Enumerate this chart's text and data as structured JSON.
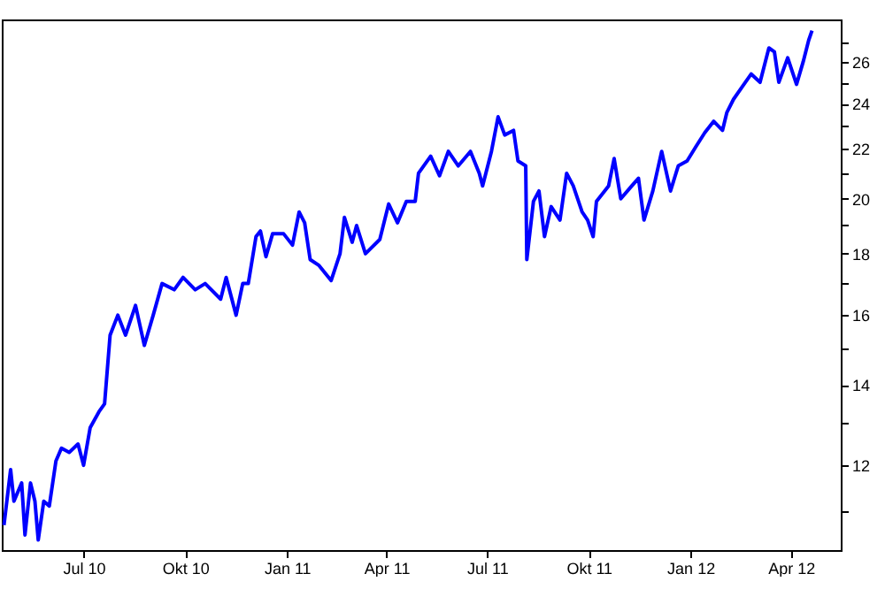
{
  "chart_data": {
    "type": "line",
    "log": "y",
    "grid": false,
    "xlim": [
      "2010-04-18",
      "2012-05-16"
    ],
    "xticks": [
      {
        "value": "2010-07-01",
        "label": "Jul 10"
      },
      {
        "value": "2010-10-01",
        "label": "Okt 10"
      },
      {
        "value": "2011-01-01",
        "label": "Jan 11"
      },
      {
        "value": "2011-04-01",
        "label": "Apr 11"
      },
      {
        "value": "2011-07-01",
        "label": "Jul 11"
      },
      {
        "value": "2011-10-01",
        "label": "Okt 11"
      },
      {
        "value": "2012-01-01",
        "label": "Jan 12"
      },
      {
        "value": "2012-04-01",
        "label": "Apr 12"
      }
    ],
    "ylim": [
      10.2,
      28.2
    ],
    "yticks": [
      {
        "value": 11,
        "label": null
      },
      12,
      {
        "value": 13,
        "label": null
      },
      14,
      {
        "value": 15,
        "label": null
      },
      16,
      {
        "value": 17,
        "label": null
      },
      18,
      {
        "value": 19,
        "label": null
      },
      20,
      {
        "value": 21,
        "label": null
      },
      22,
      {
        "value": 23,
        "label": null
      },
      24,
      {
        "value": 25,
        "label": null
      },
      26,
      {
        "value": 27,
        "label": null
      }
    ],
    "x": [
      "2010-04-20",
      "2010-04-26",
      "2010-04-29",
      "2010-05-06",
      "2010-05-09",
      "2010-05-14",
      "2010-05-18",
      "2010-05-21",
      "2010-05-26",
      "2010-05-31",
      "2010-06-06",
      "2010-06-11",
      "2010-06-18",
      "2010-06-26",
      "2010-07-01",
      "2010-07-07",
      "2010-07-15",
      "2010-07-20",
      "2010-07-25",
      "2010-08-01",
      "2010-08-08",
      "2010-08-17",
      "2010-08-25",
      "2010-09-02",
      "2010-09-10",
      "2010-09-21",
      "2010-09-29",
      "2010-10-10",
      "2010-10-19",
      "2010-11-02",
      "2010-11-07",
      "2010-11-16",
      "2010-11-22",
      "2010-11-27",
      "2010-12-04",
      "2010-12-08",
      "2010-12-13",
      "2010-12-19",
      "2010-12-29",
      "2011-01-06",
      "2011-01-12",
      "2011-01-17",
      "2011-01-22",
      "2011-01-30",
      "2011-02-10",
      "2011-02-18",
      "2011-02-22",
      "2011-03-01",
      "2011-03-05",
      "2011-03-13",
      "2011-03-26",
      "2011-04-03",
      "2011-04-11",
      "2011-04-19",
      "2011-04-27",
      "2011-04-30",
      "2011-05-11",
      "2011-05-19",
      "2011-05-27",
      "2011-06-05",
      "2011-06-16",
      "2011-06-24",
      "2011-06-27",
      "2011-07-05",
      "2011-07-11",
      "2011-07-17",
      "2011-07-25",
      "2011-07-29",
      "2011-08-05",
      "2011-08-06",
      "2011-08-12",
      "2011-08-17",
      "2011-08-22",
      "2011-08-28",
      "2011-09-05",
      "2011-09-11",
      "2011-09-17",
      "2011-09-25",
      "2011-09-30",
      "2011-10-05",
      "2011-10-08",
      "2011-10-19",
      "2011-10-24",
      "2011-10-30",
      "2011-11-09",
      "2011-11-15",
      "2011-11-20",
      "2011-11-28",
      "2011-12-06",
      "2011-12-14",
      "2011-12-21",
      "2011-12-29",
      "2012-01-06",
      "2012-01-14",
      "2012-01-22",
      "2012-01-30",
      "2012-02-03",
      "2012-02-09",
      "2012-02-17",
      "2012-02-25",
      "2012-03-04",
      "2012-03-12",
      "2012-03-17",
      "2012-03-21",
      "2012-03-29",
      "2012-04-06",
      "2012-04-12",
      "2012-04-17",
      "2012-04-20"
    ],
    "series": [
      {
        "color": "#0000ff",
        "values": [
          10.7,
          11.9,
          11.2,
          11.6,
          10.5,
          11.6,
          11.2,
          10.4,
          11.2,
          11.1,
          12.1,
          12.4,
          12.3,
          12.5,
          12.0,
          12.9,
          13.3,
          13.5,
          15.4,
          16.0,
          15.4,
          16.3,
          15.1,
          16.0,
          17.0,
          16.8,
          17.2,
          16.8,
          17.0,
          16.5,
          17.2,
          16.0,
          17.0,
          17.0,
          18.6,
          18.8,
          17.9,
          18.7,
          18.7,
          18.3,
          19.5,
          19.1,
          17.8,
          17.6,
          17.1,
          18.0,
          19.3,
          18.4,
          19.0,
          18.0,
          18.5,
          19.8,
          19.1,
          19.9,
          19.9,
          21.0,
          21.7,
          20.9,
          21.9,
          21.3,
          21.9,
          21.0,
          20.5,
          21.9,
          23.4,
          22.6,
          22.8,
          21.5,
          21.3,
          17.8,
          19.9,
          20.3,
          18.6,
          19.7,
          19.2,
          21.0,
          20.5,
          19.5,
          19.2,
          18.6,
          19.9,
          20.5,
          21.6,
          20.0,
          20.5,
          20.8,
          19.2,
          20.3,
          21.9,
          20.3,
          21.3,
          21.5,
          22.1,
          22.7,
          23.2,
          22.8,
          23.6,
          24.2,
          24.8,
          25.4,
          25.0,
          26.7,
          26.5,
          25.0,
          26.2,
          24.9,
          26.0,
          27.1,
          27.6
        ]
      }
    ]
  }
}
